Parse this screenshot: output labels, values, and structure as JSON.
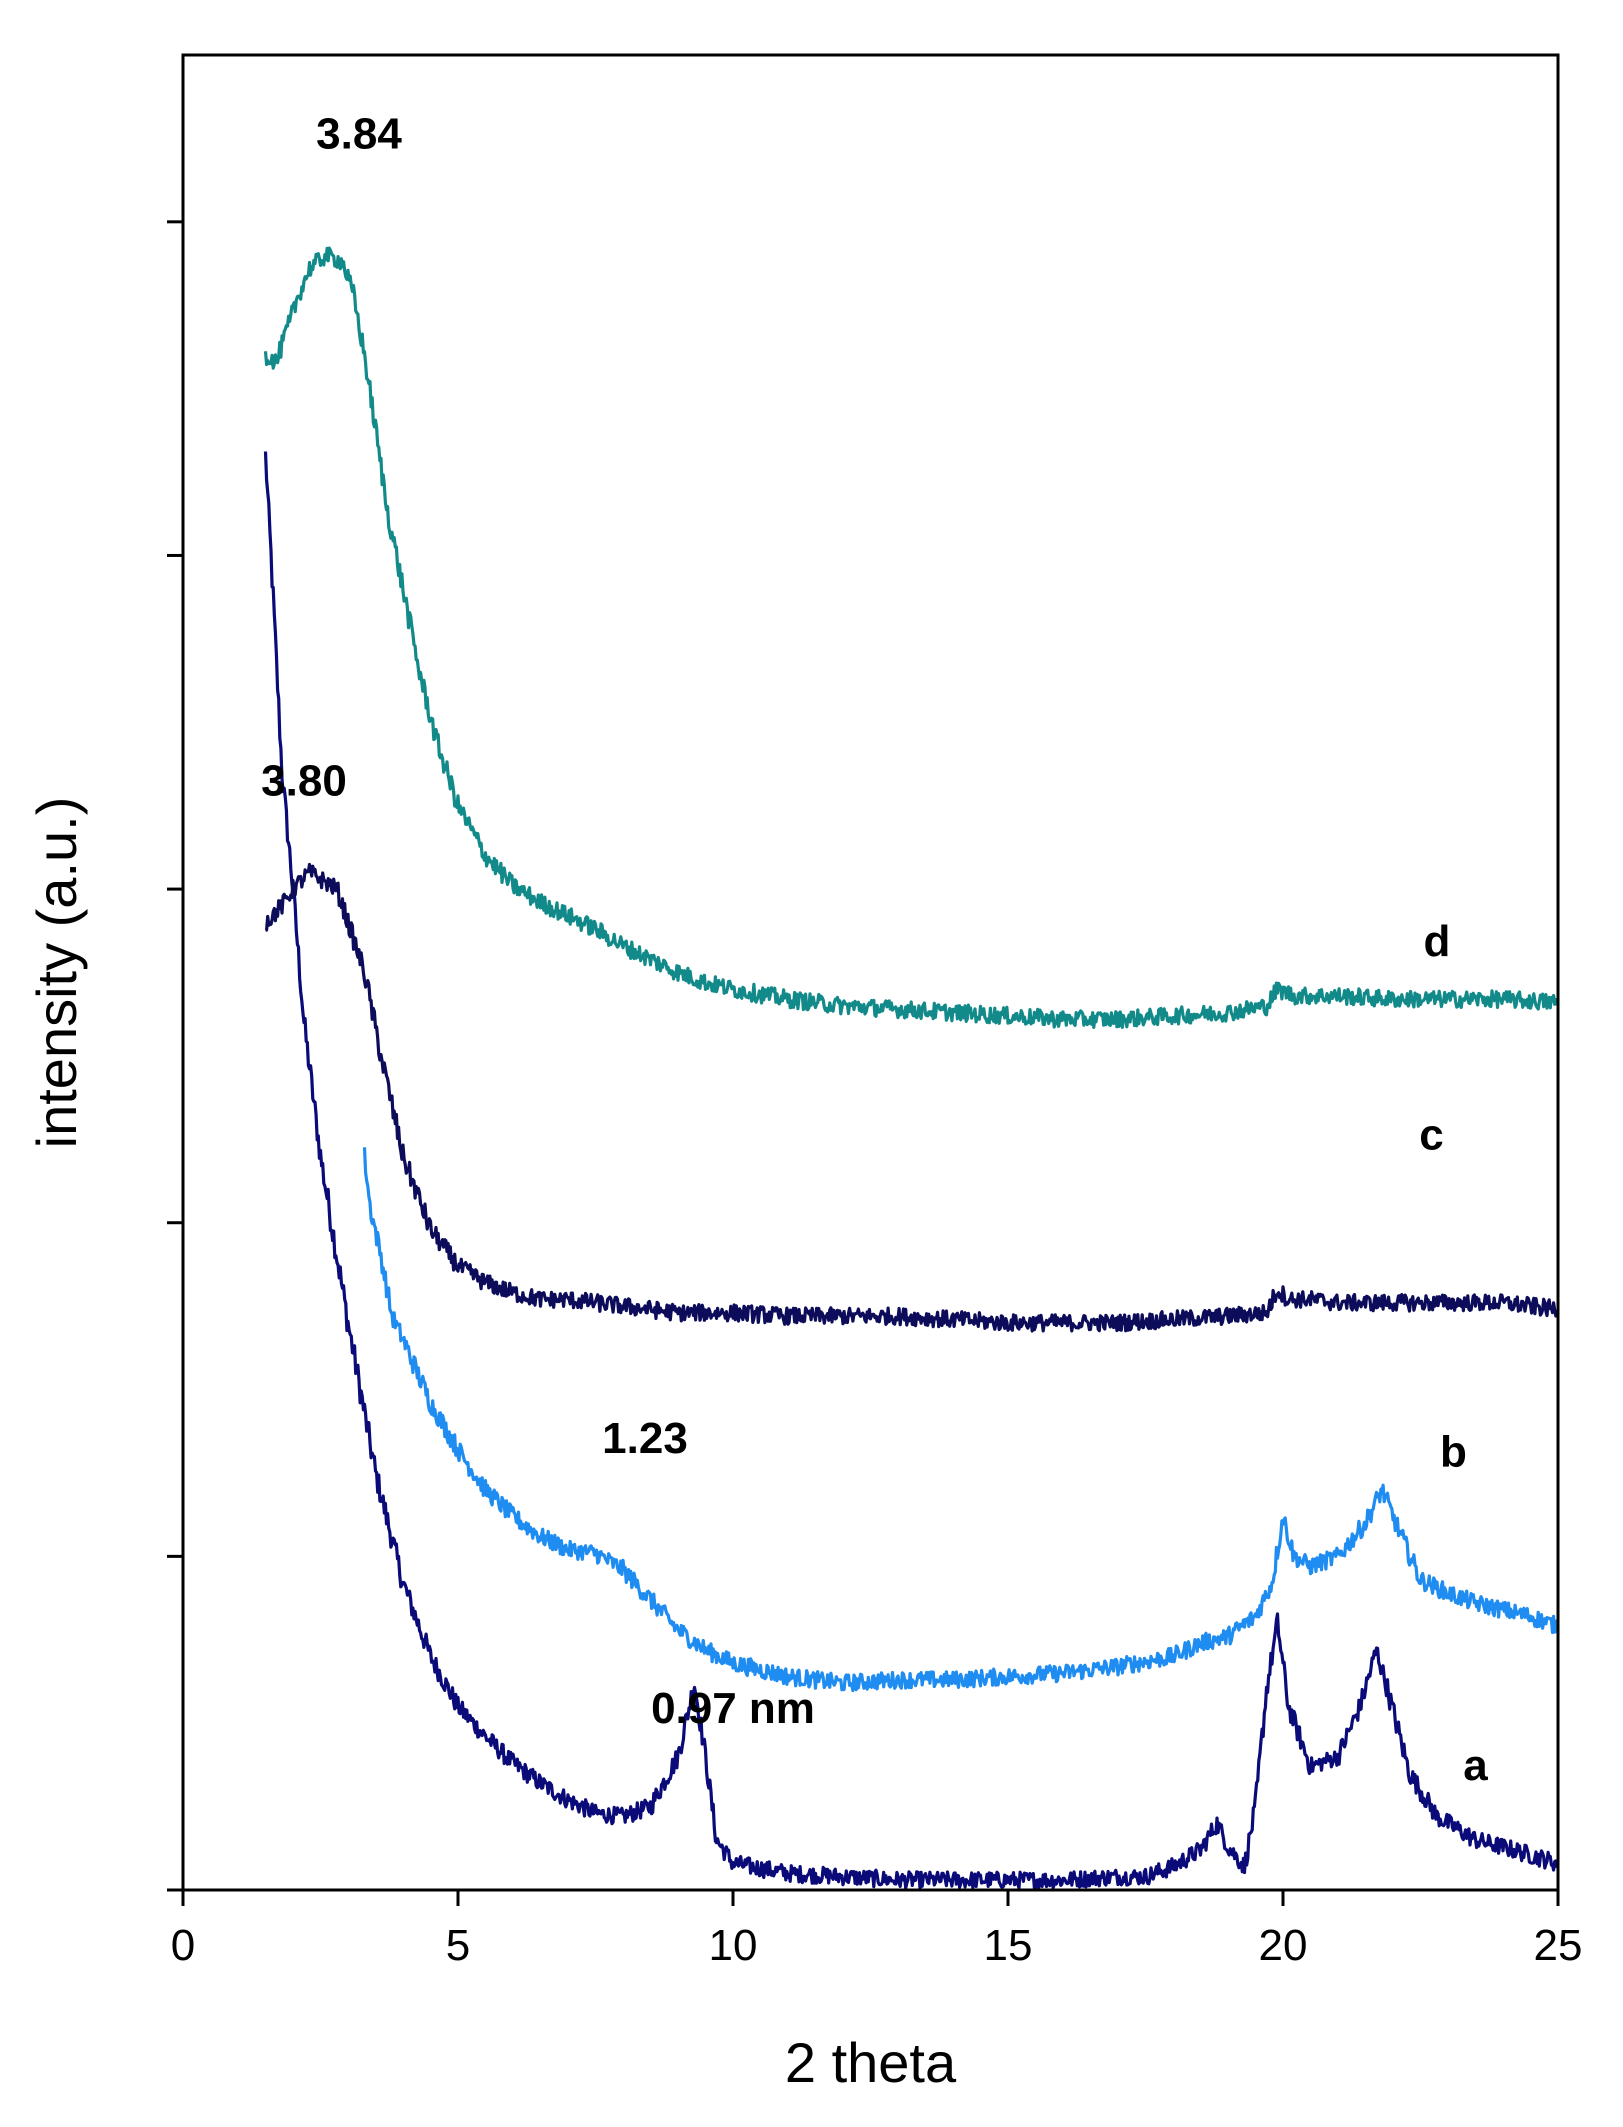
{
  "chart_data": {
    "type": "line",
    "title": "",
    "xlabel": "2 theta",
    "ylabel": "intensity (a.u.)",
    "xlim": [
      0,
      25
    ],
    "ylim": [
      0,
      5.5
    ],
    "x_ticks": [
      "0",
      "5",
      "10",
      "15",
      "20",
      "25"
    ],
    "y_ticks_count": 6,
    "y_tick_labels_shown": false,
    "grid": false,
    "series": [
      {
        "name": "a",
        "color": "#0a0a78",
        "points": [
          [
            1.5,
            4.3
          ],
          [
            1.6,
            4.0
          ],
          [
            1.8,
            3.35
          ],
          [
            2.0,
            3.0
          ],
          [
            2.2,
            2.6
          ],
          [
            2.5,
            2.2
          ],
          [
            3.0,
            1.7
          ],
          [
            3.5,
            1.25
          ],
          [
            4.0,
            0.92
          ],
          [
            4.5,
            0.7
          ],
          [
            5.0,
            0.55
          ],
          [
            5.5,
            0.46
          ],
          [
            6.0,
            0.38
          ],
          [
            6.5,
            0.32
          ],
          [
            7.0,
            0.27
          ],
          [
            7.5,
            0.23
          ],
          [
            8.0,
            0.22
          ],
          [
            8.5,
            0.25
          ],
          [
            9.0,
            0.4
          ],
          [
            9.3,
            0.62
          ],
          [
            9.5,
            0.4
          ],
          [
            9.7,
            0.15
          ],
          [
            10.0,
            0.08
          ],
          [
            11.0,
            0.05
          ],
          [
            12.0,
            0.04
          ],
          [
            13.0,
            0.03
          ],
          [
            14.0,
            0.03
          ],
          [
            15.0,
            0.03
          ],
          [
            16.0,
            0.03
          ],
          [
            17.0,
            0.04
          ],
          [
            17.5,
            0.04
          ],
          [
            18.0,
            0.07
          ],
          [
            18.5,
            0.12
          ],
          [
            18.8,
            0.2
          ],
          [
            19.0,
            0.13
          ],
          [
            19.3,
            0.07
          ],
          [
            19.5,
            0.25
          ],
          [
            19.7,
            0.6
          ],
          [
            19.9,
            0.8
          ],
          [
            20.1,
            0.55
          ],
          [
            20.5,
            0.37
          ],
          [
            21.0,
            0.4
          ],
          [
            21.4,
            0.55
          ],
          [
            21.7,
            0.72
          ],
          [
            21.9,
            0.6
          ],
          [
            22.3,
            0.35
          ],
          [
            22.8,
            0.22
          ],
          [
            23.5,
            0.15
          ],
          [
            24.2,
            0.12
          ],
          [
            25.0,
            0.08
          ]
        ]
      },
      {
        "name": "b",
        "color": "#1e8cf0",
        "points": [
          [
            3.3,
            2.2
          ],
          [
            3.4,
            2.05
          ],
          [
            3.6,
            1.9
          ],
          [
            3.8,
            1.72
          ],
          [
            4.0,
            1.65
          ],
          [
            4.5,
            1.46
          ],
          [
            5.0,
            1.32
          ],
          [
            5.5,
            1.2
          ],
          [
            6.0,
            1.12
          ],
          [
            6.5,
            1.06
          ],
          [
            7.0,
            1.02
          ],
          [
            7.5,
            1.01
          ],
          [
            8.0,
            0.96
          ],
          [
            8.5,
            0.87
          ],
          [
            9.0,
            0.78
          ],
          [
            9.5,
            0.72
          ],
          [
            10.0,
            0.68
          ],
          [
            11.0,
            0.64
          ],
          [
            12.0,
            0.62
          ],
          [
            13.0,
            0.63
          ],
          [
            14.0,
            0.63
          ],
          [
            15.0,
            0.64
          ],
          [
            16.0,
            0.65
          ],
          [
            17.0,
            0.67
          ],
          [
            18.0,
            0.7
          ],
          [
            18.5,
            0.74
          ],
          [
            19.0,
            0.76
          ],
          [
            19.5,
            0.82
          ],
          [
            19.8,
            0.92
          ],
          [
            20.0,
            1.12
          ],
          [
            20.2,
            1.0
          ],
          [
            20.5,
            0.97
          ],
          [
            21.0,
            1.0
          ],
          [
            21.5,
            1.1
          ],
          [
            21.8,
            1.2
          ],
          [
            22.1,
            1.08
          ],
          [
            22.5,
            0.93
          ],
          [
            23.0,
            0.89
          ],
          [
            23.5,
            0.86
          ],
          [
            24.0,
            0.84
          ],
          [
            24.5,
            0.82
          ],
          [
            25.0,
            0.79
          ]
        ]
      },
      {
        "name": "c",
        "color": "#0c0c5a",
        "points": [
          [
            1.5,
            2.9
          ],
          [
            1.8,
            2.95
          ],
          [
            2.0,
            3.0
          ],
          [
            2.3,
            3.05
          ],
          [
            2.6,
            3.02
          ],
          [
            2.8,
            3.0
          ],
          [
            3.0,
            2.9
          ],
          [
            3.3,
            2.75
          ],
          [
            3.6,
            2.5
          ],
          [
            4.0,
            2.2
          ],
          [
            4.5,
            1.98
          ],
          [
            5.0,
            1.87
          ],
          [
            5.5,
            1.82
          ],
          [
            6.0,
            1.79
          ],
          [
            6.5,
            1.77
          ],
          [
            7.0,
            1.77
          ],
          [
            8.0,
            1.75
          ],
          [
            9.0,
            1.73
          ],
          [
            10.0,
            1.73
          ],
          [
            11.0,
            1.72
          ],
          [
            12.0,
            1.72
          ],
          [
            13.0,
            1.72
          ],
          [
            14.0,
            1.71
          ],
          [
            15.0,
            1.7
          ],
          [
            16.0,
            1.7
          ],
          [
            17.0,
            1.7
          ],
          [
            18.0,
            1.71
          ],
          [
            19.0,
            1.72
          ],
          [
            19.7,
            1.73
          ],
          [
            19.9,
            1.8
          ],
          [
            20.1,
            1.77
          ],
          [
            20.5,
            1.77
          ],
          [
            21.0,
            1.76
          ],
          [
            22.0,
            1.76
          ],
          [
            23.0,
            1.76
          ],
          [
            24.0,
            1.76
          ],
          [
            25.0,
            1.74
          ]
        ]
      },
      {
        "name": "d",
        "color": "#138a8a",
        "points": [
          [
            1.5,
            4.6
          ],
          [
            1.7,
            4.58
          ],
          [
            1.9,
            4.68
          ],
          [
            2.1,
            4.78
          ],
          [
            2.3,
            4.86
          ],
          [
            2.6,
            4.9
          ],
          [
            2.9,
            4.88
          ],
          [
            3.1,
            4.78
          ],
          [
            3.3,
            4.6
          ],
          [
            3.5,
            4.38
          ],
          [
            3.7,
            4.15
          ],
          [
            4.0,
            3.9
          ],
          [
            4.3,
            3.65
          ],
          [
            4.6,
            3.45
          ],
          [
            5.0,
            3.25
          ],
          [
            5.5,
            3.1
          ],
          [
            6.0,
            3.01
          ],
          [
            6.5,
            2.96
          ],
          [
            7.0,
            2.92
          ],
          [
            7.5,
            2.88
          ],
          [
            8.0,
            2.83
          ],
          [
            8.5,
            2.79
          ],
          [
            9.0,
            2.75
          ],
          [
            9.5,
            2.72
          ],
          [
            10.0,
            2.7
          ],
          [
            11.0,
            2.67
          ],
          [
            12.0,
            2.65
          ],
          [
            13.0,
            2.64
          ],
          [
            14.0,
            2.63
          ],
          [
            15.0,
            2.62
          ],
          [
            16.0,
            2.61
          ],
          [
            17.0,
            2.61
          ],
          [
            18.0,
            2.62
          ],
          [
            19.0,
            2.63
          ],
          [
            19.7,
            2.65
          ],
          [
            19.9,
            2.7
          ],
          [
            20.2,
            2.68
          ],
          [
            21.0,
            2.68
          ],
          [
            22.0,
            2.67
          ],
          [
            23.0,
            2.67
          ],
          [
            24.0,
            2.67
          ],
          [
            25.0,
            2.66
          ]
        ]
      }
    ],
    "annotations": [
      {
        "text": "3.84",
        "x": 3.2,
        "y": 5.22
      },
      {
        "text": "3.80",
        "x": 2.2,
        "y": 3.28
      },
      {
        "text": "1.23",
        "x": 8.4,
        "y": 1.31
      },
      {
        "text": "0.97 nm",
        "x": 10.0,
        "y": 0.5
      },
      {
        "text": "d",
        "x": 22.8,
        "y": 2.8
      },
      {
        "text": "c",
        "x": 22.7,
        "y": 2.22
      },
      {
        "text": "b",
        "x": 23.1,
        "y": 1.27
      },
      {
        "text": "a",
        "x": 23.5,
        "y": 0.33
      }
    ]
  }
}
